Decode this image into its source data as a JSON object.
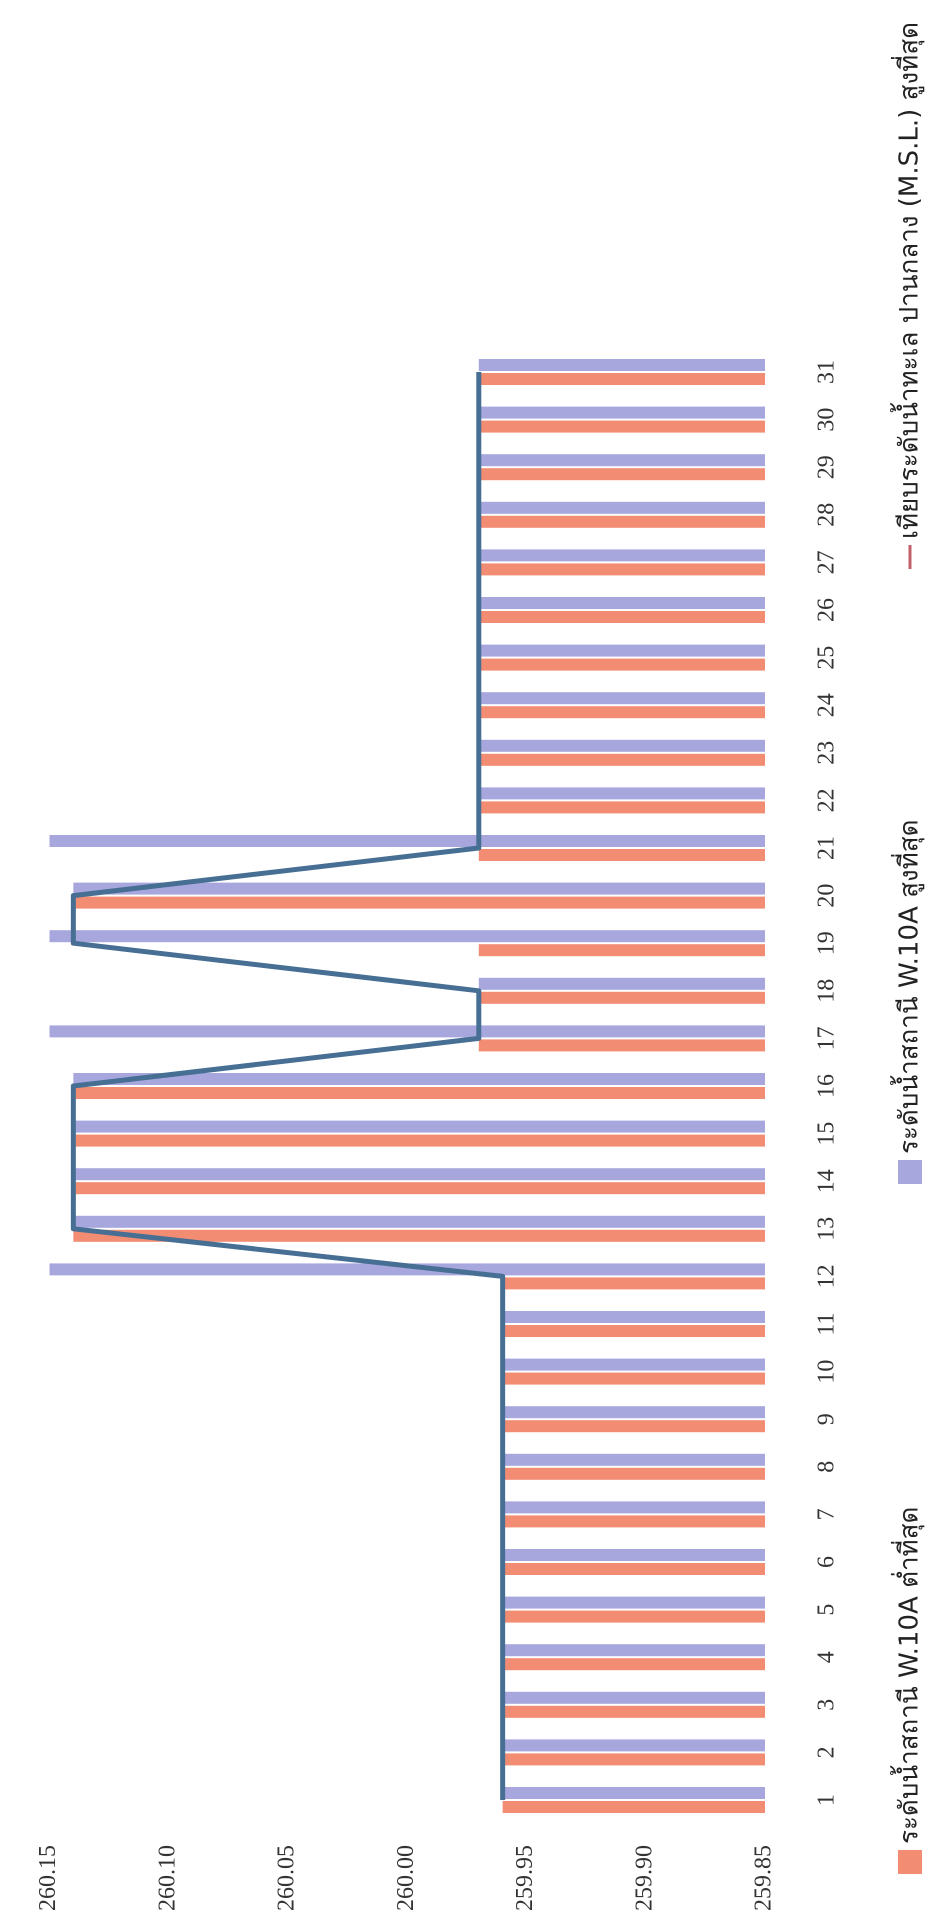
{
  "chart_data": {
    "type": "bar",
    "categories": [
      "1",
      "2",
      "3",
      "4",
      "5",
      "6",
      "7",
      "8",
      "9",
      "10",
      "11",
      "12",
      "13",
      "14",
      "15",
      "16",
      "17",
      "18",
      "19",
      "20",
      "21",
      "22",
      "23",
      "24",
      "25",
      "26",
      "27",
      "28",
      "29",
      "30",
      "31"
    ],
    "y_ticks": [
      "259.85",
      "259.90",
      "259.95",
      "260.00",
      "260.05",
      "260.10",
      "260.15"
    ],
    "ylim": [
      259.85,
      260.15
    ],
    "grid": false,
    "legend_position": "bottom",
    "colors": {
      "min": "#f28c73",
      "max": "#a7a7de",
      "line": "#466f93"
    },
    "series": [
      {
        "name": "ระดับน้ำสถานี W.10A ต่ำที่สุด",
        "kind": "bar",
        "color": "#f28c73",
        "values": [
          259.96,
          259.96,
          259.96,
          259.96,
          259.96,
          259.96,
          259.96,
          259.96,
          259.96,
          259.96,
          259.96,
          259.96,
          260.14,
          260.14,
          260.14,
          260.14,
          259.97,
          259.97,
          259.97,
          260.14,
          259.97,
          259.97,
          259.97,
          259.97,
          259.97,
          259.97,
          259.97,
          259.97,
          259.97,
          259.97,
          259.97
        ]
      },
      {
        "name": "ระดับน้ำสถานี W.10A สูงที่สุด",
        "kind": "bar",
        "color": "#a7a7de",
        "values": [
          259.96,
          259.96,
          259.96,
          259.96,
          259.96,
          259.96,
          259.96,
          259.96,
          259.96,
          259.96,
          259.96,
          260.15,
          260.14,
          260.14,
          260.14,
          260.14,
          260.15,
          259.97,
          260.15,
          260.14,
          260.15,
          259.97,
          259.97,
          259.97,
          259.97,
          259.97,
          259.97,
          259.97,
          259.97,
          259.97,
          259.97
        ]
      },
      {
        "name": "เทียบระดับน้ำทะเล ปานกลาง (M.S.L.) สูงที่สุด",
        "kind": "line",
        "color": "#466f93",
        "values": [
          259.96,
          259.96,
          259.96,
          259.96,
          259.96,
          259.96,
          259.96,
          259.96,
          259.96,
          259.96,
          259.96,
          259.96,
          260.14,
          260.14,
          260.14,
          260.14,
          259.97,
          259.97,
          260.14,
          260.14,
          259.97,
          259.97,
          259.97,
          259.97,
          259.97,
          259.97,
          259.97,
          259.97,
          259.97,
          259.97,
          259.97
        ]
      }
    ]
  }
}
